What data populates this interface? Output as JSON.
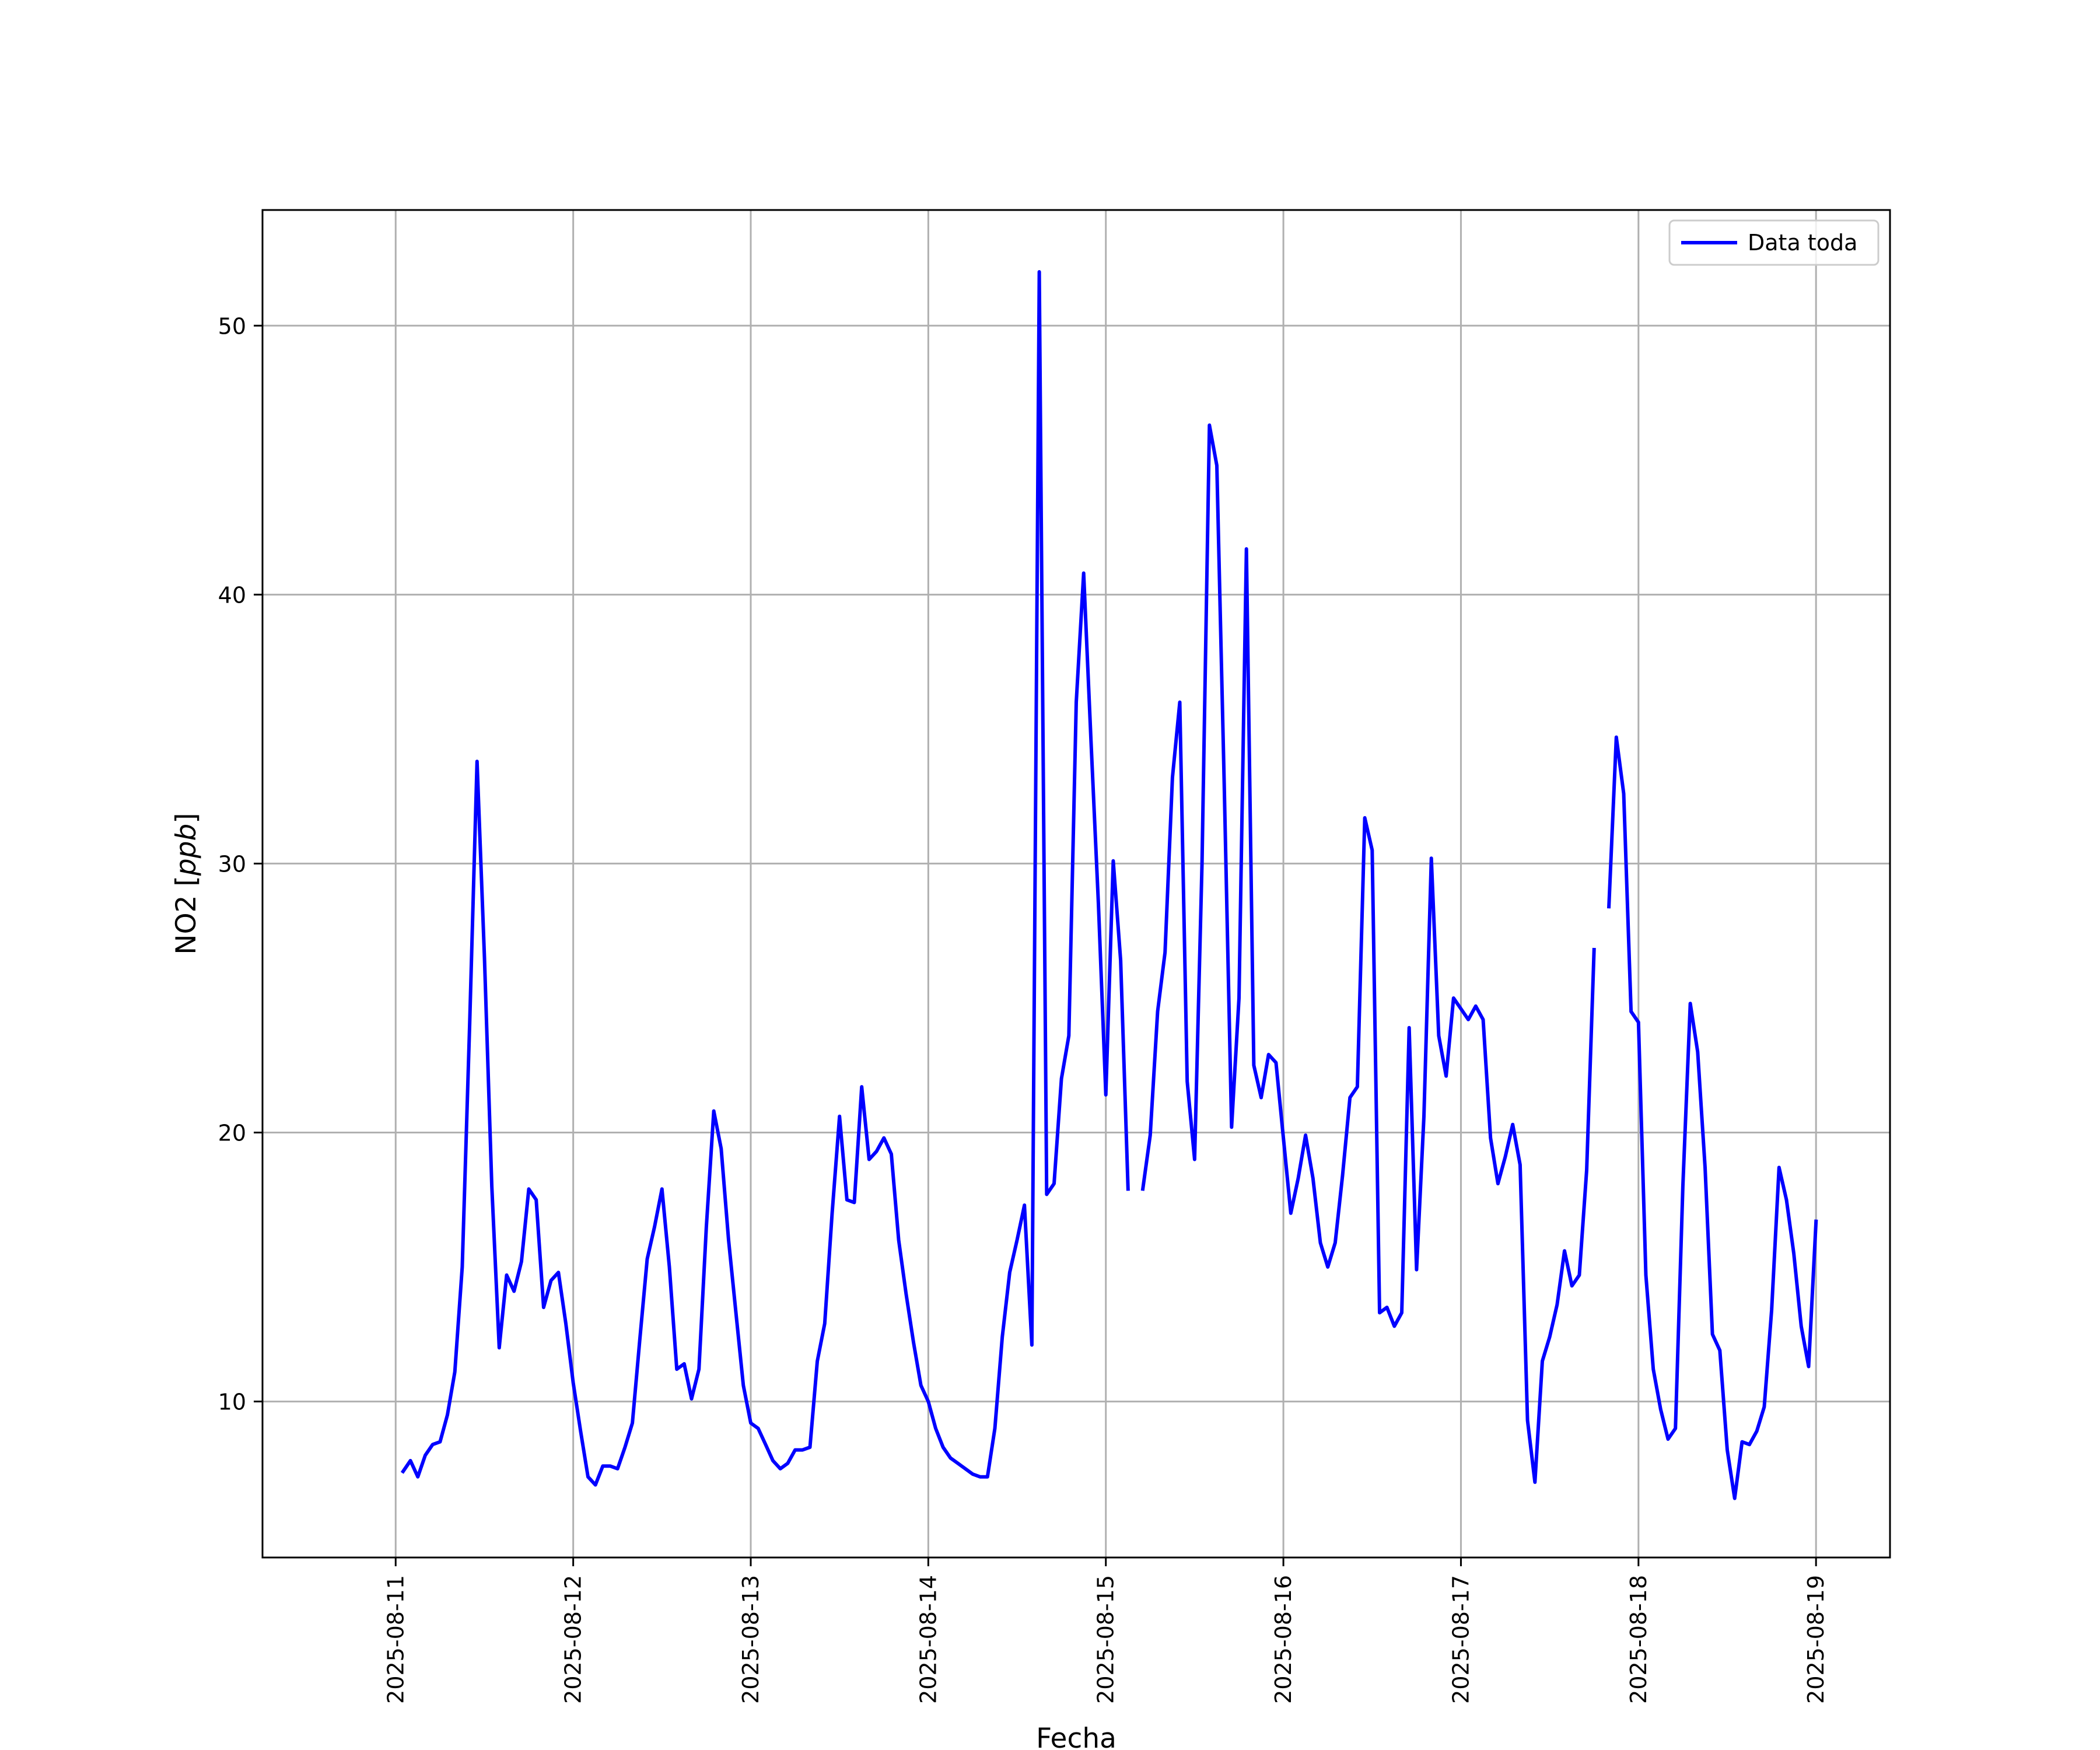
{
  "chart_data": {
    "type": "line",
    "title": "",
    "xlabel": "Fecha",
    "ylabel": "NO2 [ppb]",
    "ylabel_prefix": "NO2 [",
    "ylabel_unit": "ppb",
    "ylabel_suffix": "]",
    "xlim": [
      "2025-08-10T06:00",
      "2025-08-19T10:00"
    ],
    "ylim": [
      4.2,
      54.3
    ],
    "x_ticks": [
      "2025-08-11",
      "2025-08-12",
      "2025-08-13",
      "2025-08-14",
      "2025-08-15",
      "2025-08-16",
      "2025-08-17",
      "2025-08-18",
      "2025-08-19"
    ],
    "y_ticks": [
      10,
      20,
      30,
      40,
      50
    ],
    "grid": true,
    "legend_position": "top-right",
    "colors": {
      "series": "#0000ff",
      "grid": "#b0b0b0",
      "axes": "#000000"
    },
    "series": [
      {
        "name": "Data toda",
        "x": [
          "2025-08-11T01:00",
          "2025-08-11T02:00",
          "2025-08-11T03:00",
          "2025-08-11T04:00",
          "2025-08-11T05:00",
          "2025-08-11T06:00",
          "2025-08-11T07:00",
          "2025-08-11T08:00",
          "2025-08-11T09:00",
          "2025-08-11T10:00",
          "2025-08-11T11:00",
          "2025-08-11T12:00",
          "2025-08-11T13:00",
          "2025-08-11T14:00",
          "2025-08-11T15:00",
          "2025-08-11T16:00",
          "2025-08-11T17:00",
          "2025-08-11T18:00",
          "2025-08-11T19:00",
          "2025-08-11T20:00",
          "2025-08-11T21:00",
          "2025-08-11T22:00",
          "2025-08-11T23:00",
          "2025-08-12T00:00",
          "2025-08-12T01:00",
          "2025-08-12T02:00",
          "2025-08-12T03:00",
          "2025-08-12T04:00",
          "2025-08-12T05:00",
          "2025-08-12T06:00",
          "2025-08-12T07:00",
          "2025-08-12T08:00",
          "2025-08-12T09:00",
          "2025-08-12T10:00",
          "2025-08-12T11:00",
          "2025-08-12T12:00",
          "2025-08-12T13:00",
          "2025-08-12T14:00",
          "2025-08-12T15:00",
          "2025-08-12T16:00",
          "2025-08-12T17:00",
          "2025-08-12T18:00",
          "2025-08-12T19:00",
          "2025-08-12T20:00",
          "2025-08-12T21:00",
          "2025-08-12T22:00",
          "2025-08-12T23:00",
          "2025-08-13T00:00",
          "2025-08-13T01:00",
          "2025-08-13T02:00",
          "2025-08-13T03:00",
          "2025-08-13T04:00",
          "2025-08-13T05:00",
          "2025-08-13T06:00",
          "2025-08-13T07:00",
          "2025-08-13T08:00",
          "2025-08-13T09:00",
          "2025-08-13T10:00",
          "2025-08-13T11:00",
          "2025-08-13T12:00",
          "2025-08-13T13:00",
          "2025-08-13T14:00",
          "2025-08-13T15:00",
          "2025-08-13T16:00",
          "2025-08-13T17:00",
          "2025-08-13T18:00",
          "2025-08-13T19:00",
          "2025-08-13T20:00",
          "2025-08-13T21:00",
          "2025-08-13T22:00",
          "2025-08-13T23:00",
          "2025-08-14T00:00",
          "2025-08-14T01:00",
          "2025-08-14T02:00",
          "2025-08-14T03:00",
          "2025-08-14T04:00",
          "2025-08-14T05:00",
          "2025-08-14T06:00",
          "2025-08-14T07:00",
          "2025-08-14T08:00",
          "2025-08-14T09:00",
          "2025-08-14T10:00",
          "2025-08-14T11:00",
          "2025-08-14T12:00",
          "2025-08-14T13:00",
          "2025-08-14T14:00",
          "2025-08-14T15:00",
          "2025-08-14T16:00",
          "2025-08-14T17:00",
          "2025-08-14T18:00",
          "2025-08-14T19:00",
          "2025-08-14T20:00",
          "2025-08-14T21:00",
          "2025-08-14T22:00",
          "2025-08-14T23:00",
          "2025-08-15T00:00",
          "2025-08-15T01:00",
          "2025-08-15T02:00",
          "2025-08-15T03:00",
          "2025-08-15T04:00",
          "2025-08-15T05:00",
          "2025-08-15T06:00",
          "2025-08-15T07:00",
          "2025-08-15T08:00",
          "2025-08-15T09:00",
          "2025-08-15T10:00",
          "2025-08-15T11:00",
          "2025-08-15T12:00",
          "2025-08-15T13:00",
          "2025-08-15T14:00",
          "2025-08-15T15:00",
          "2025-08-15T16:00",
          "2025-08-15T17:00",
          "2025-08-15T18:00",
          "2025-08-15T19:00",
          "2025-08-15T20:00",
          "2025-08-15T21:00",
          "2025-08-15T22:00",
          "2025-08-15T23:00",
          "2025-08-16T00:00",
          "2025-08-16T01:00",
          "2025-08-16T02:00",
          "2025-08-16T03:00",
          "2025-08-16T04:00",
          "2025-08-16T05:00",
          "2025-08-16T06:00",
          "2025-08-16T07:00",
          "2025-08-16T08:00",
          "2025-08-16T09:00",
          "2025-08-16T10:00",
          "2025-08-16T11:00",
          "2025-08-16T12:00",
          "2025-08-16T13:00",
          "2025-08-16T14:00",
          "2025-08-16T15:00",
          "2025-08-16T16:00",
          "2025-08-16T17:00",
          "2025-08-16T18:00",
          "2025-08-16T19:00",
          "2025-08-16T20:00",
          "2025-08-16T21:00",
          "2025-08-16T22:00",
          "2025-08-16T23:00",
          "2025-08-17T00:00",
          "2025-08-17T01:00",
          "2025-08-17T02:00",
          "2025-08-17T03:00",
          "2025-08-17T04:00",
          "2025-08-17T05:00",
          "2025-08-17T06:00",
          "2025-08-17T07:00",
          "2025-08-17T08:00",
          "2025-08-17T09:00",
          "2025-08-17T10:00",
          "2025-08-17T11:00",
          "2025-08-17T12:00",
          "2025-08-17T13:00",
          "2025-08-17T14:00",
          "2025-08-17T15:00",
          "2025-08-17T16:00",
          "2025-08-17T17:00",
          "2025-08-17T18:00",
          "2025-08-17T19:00",
          "2025-08-17T20:00",
          "2025-08-17T21:00",
          "2025-08-17T22:00",
          "2025-08-17T23:00",
          "2025-08-18T00:00",
          "2025-08-18T01:00",
          "2025-08-18T02:00",
          "2025-08-18T03:00",
          "2025-08-18T04:00",
          "2025-08-18T05:00",
          "2025-08-18T06:00",
          "2025-08-18T07:00",
          "2025-08-18T08:00",
          "2025-08-18T09:00",
          "2025-08-18T10:00",
          "2025-08-18T11:00",
          "2025-08-18T12:00",
          "2025-08-18T13:00",
          "2025-08-18T14:00",
          "2025-08-18T15:00",
          "2025-08-18T16:00",
          "2025-08-18T17:00",
          "2025-08-18T18:00",
          "2025-08-18T19:00",
          "2025-08-18T20:00",
          "2025-08-18T21:00",
          "2025-08-18T22:00",
          "2025-08-18T23:00",
          "2025-08-19T00:00"
        ],
        "values": [
          7.4,
          7.8,
          7.2,
          8.0,
          8.4,
          8.5,
          9.5,
          11.1,
          15.0,
          24.0,
          33.8,
          26.5,
          18.0,
          12.0,
          14.7,
          14.1,
          15.2,
          17.9,
          17.5,
          13.5,
          14.5,
          14.8,
          12.9,
          10.7,
          8.9,
          7.2,
          6.9,
          7.6,
          7.6,
          7.5,
          8.3,
          9.2,
          12.3,
          15.3,
          16.5,
          17.9,
          15.0,
          11.2,
          11.4,
          10.1,
          11.2,
          16.5,
          20.8,
          19.4,
          16.0,
          13.3,
          10.6,
          9.2,
          9.0,
          8.4,
          7.8,
          7.5,
          7.7,
          8.2,
          8.2,
          8.3,
          11.5,
          12.9,
          17.0,
          20.6,
          17.5,
          17.4,
          21.7,
          19.0,
          19.3,
          19.8,
          19.2,
          16.0,
          14.0,
          12.2,
          10.6,
          10.0,
          9.0,
          8.3,
          7.9,
          7.7,
          7.5,
          7.3,
          7.2,
          7.2,
          9.0,
          12.4,
          14.8,
          16.0,
          17.3,
          12.1,
          52.0,
          17.7,
          18.1,
          22.0,
          23.6,
          36.0,
          40.8,
          34.5,
          28.5,
          21.4,
          30.1,
          26.4,
          17.9,
          null,
          17.9,
          19.9,
          24.5,
          26.7,
          33.2,
          36.0,
          21.9,
          19.0,
          30.0,
          46.3,
          44.8,
          33.0,
          20.2,
          25.0,
          41.7,
          22.5,
          21.3,
          22.9,
          22.6,
          19.8,
          17.0,
          18.3,
          19.9,
          18.3,
          15.9,
          15.0,
          15.9,
          18.4,
          21.3,
          21.7,
          31.7,
          30.5,
          13.3,
          13.5,
          12.8,
          13.3,
          23.9,
          14.9,
          20.6,
          30.2,
          23.6,
          22.1,
          25.0,
          24.6,
          24.2,
          24.7,
          24.2,
          19.8,
          18.1,
          19.1,
          20.3,
          18.8,
          9.3,
          7.0,
          11.5,
          12.4,
          13.6,
          15.6,
          14.3,
          14.7,
          18.6,
          26.8,
          null,
          28.4,
          34.7,
          32.6,
          24.5,
          24.1,
          14.7,
          11.2,
          9.7,
          8.6,
          9.0,
          18.0,
          24.8,
          23.0,
          18.7,
          12.5,
          11.9,
          8.2,
          6.4,
          8.5,
          8.4,
          8.9,
          9.8,
          13.4,
          18.7,
          17.5,
          15.5,
          12.8,
          11.3,
          16.7
        ]
      }
    ]
  }
}
